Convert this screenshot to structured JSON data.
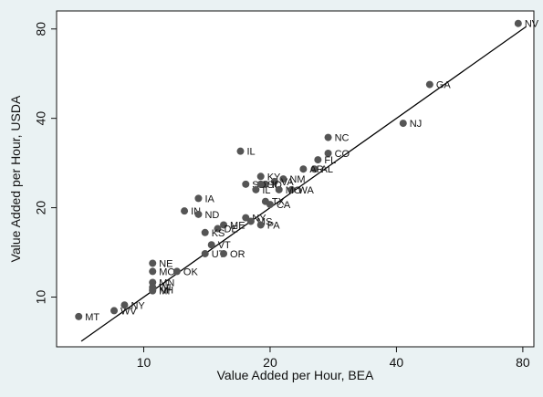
{
  "chart_data": {
    "type": "scatter",
    "xlabel": "Value Added per Hour, BEA",
    "ylabel": "Value Added per Hour, USDA",
    "x_scale": "log",
    "y_scale": "log",
    "xlim": [
      6.2,
      85
    ],
    "ylim": [
      6.8,
      92
    ],
    "x_ticks": [
      10,
      20,
      40,
      80
    ],
    "y_ticks": [
      10,
      20,
      40,
      80
    ],
    "grid": false,
    "reference_line": "y = x",
    "colors": {
      "marker": "#555555",
      "line": "#000000",
      "plot_bg": "#ffffff",
      "page_bg": "#eaf2f3"
    },
    "points": [
      {
        "label": "NV",
        "x": 78.0,
        "y": 83.5
      },
      {
        "label": "GA",
        "x": 48.0,
        "y": 52.0
      },
      {
        "label": "NJ",
        "x": 41.5,
        "y": 38.5
      },
      {
        "label": "NC",
        "x": 27.5,
        "y": 34.5
      },
      {
        "label": "CO",
        "x": 27.5,
        "y": 30.5
      },
      {
        "label": "FL",
        "x": 26.0,
        "y": 29.0
      },
      {
        "label": "IL",
        "x": 17.0,
        "y": 31.0
      },
      {
        "label": "AL",
        "x": 25.5,
        "y": 27.0
      },
      {
        "label": "AR",
        "x": 24.0,
        "y": 27.0
      },
      {
        "label": "KY",
        "x": 19.0,
        "y": 25.5
      },
      {
        "label": "NM",
        "x": 21.5,
        "y": 25.0
      },
      {
        "label": "VA",
        "x": 20.5,
        "y": 24.5
      },
      {
        "label": "ID",
        "x": 19.5,
        "y": 24.0
      },
      {
        "label": "SD",
        "x": 17.5,
        "y": 24.0
      },
      {
        "label": "SC",
        "x": 19.0,
        "y": 24.0
      },
      {
        "label": "WA",
        "x": 22.5,
        "y": 23.0
      },
      {
        "label": "MO",
        "x": 21.0,
        "y": 23.0
      },
      {
        "label": "IL",
        "x": 18.5,
        "y": 23.0
      },
      {
        "label": "TX",
        "x": 19.5,
        "y": 21.0
      },
      {
        "label": "CA",
        "x": 20.0,
        "y": 20.5
      },
      {
        "label": "NY",
        "x": 17.5,
        "y": 18.5
      },
      {
        "label": "MS",
        "x": 18.0,
        "y": 18.0
      },
      {
        "label": "PA",
        "x": 19.0,
        "y": 17.5
      },
      {
        "label": "IA",
        "x": 13.5,
        "y": 21.5
      },
      {
        "label": "IN",
        "x": 12.5,
        "y": 19.5
      },
      {
        "label": "ND",
        "x": 13.5,
        "y": 19.0
      },
      {
        "label": "ME",
        "x": 15.5,
        "y": 17.5
      },
      {
        "label": "DE",
        "x": 15.0,
        "y": 17.0
      },
      {
        "label": "KS",
        "x": 14.0,
        "y": 16.5
      },
      {
        "label": "VT",
        "x": 14.5,
        "y": 15.0
      },
      {
        "label": "UT",
        "x": 14.0,
        "y": 14.0
      },
      {
        "label": "OR",
        "x": 15.5,
        "y": 14.0
      },
      {
        "label": "NE",
        "x": 10.5,
        "y": 13.0
      },
      {
        "label": "MO",
        "x": 10.5,
        "y": 12.2
      },
      {
        "label": "OK",
        "x": 12.0,
        "y": 12.2
      },
      {
        "label": "MN",
        "x": 10.5,
        "y": 11.2
      },
      {
        "label": "WI",
        "x": 10.5,
        "y": 10.8
      },
      {
        "label": "NH",
        "x": 10.5,
        "y": 10.6
      },
      {
        "label": "MI",
        "x": 10.5,
        "y": 10.5
      },
      {
        "label": "WV",
        "x": 8.5,
        "y": 9.0
      },
      {
        "label": "NY",
        "x": 9.0,
        "y": 9.4
      },
      {
        "label": "MT",
        "x": 7.0,
        "y": 8.6
      }
    ]
  }
}
